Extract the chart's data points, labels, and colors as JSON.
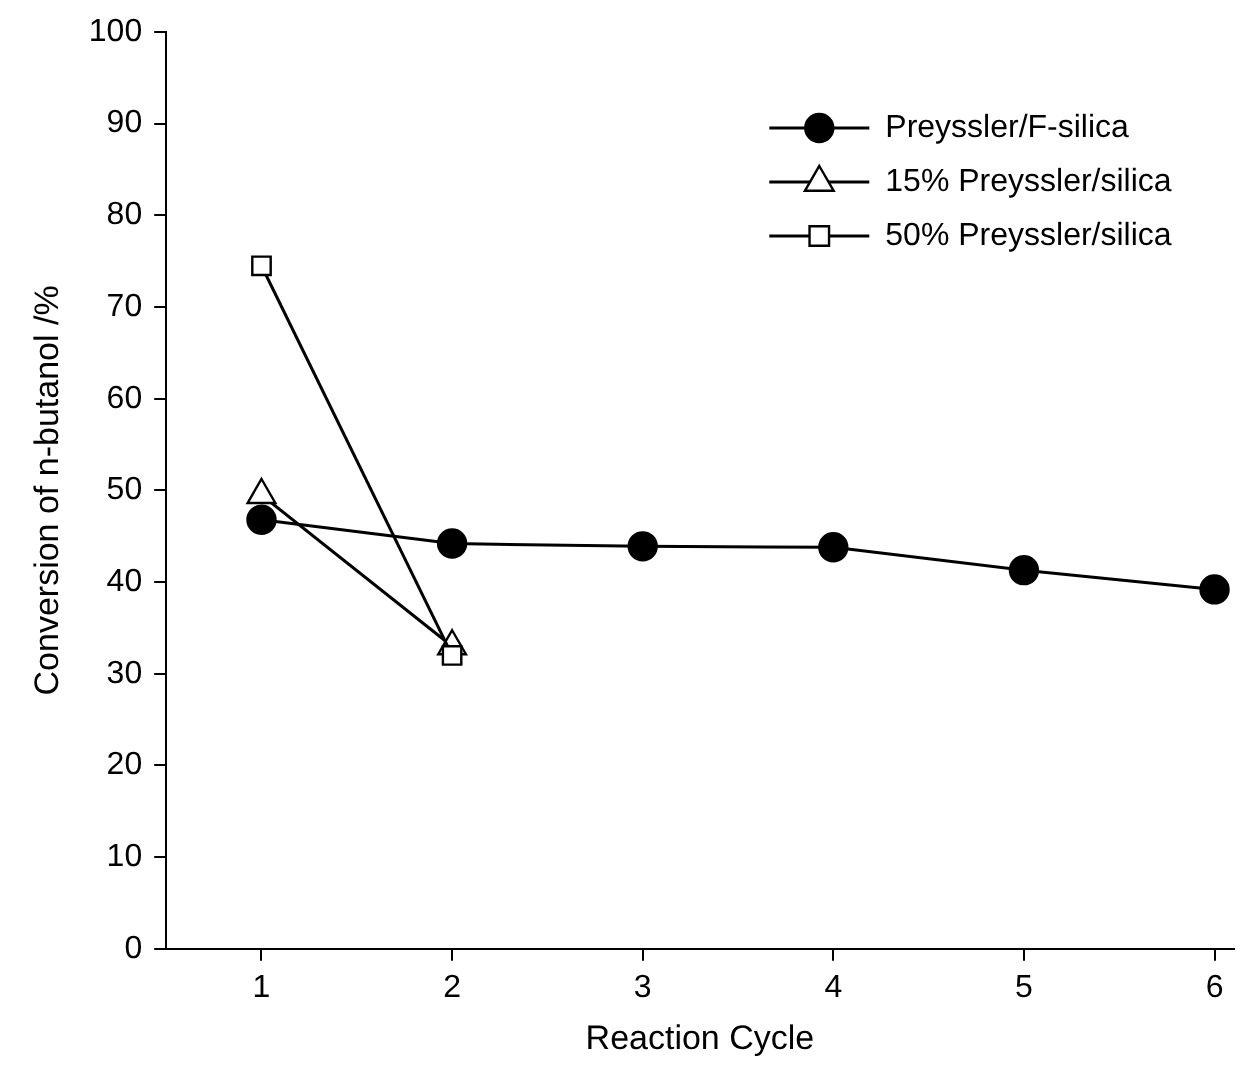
{
  "chart_data": {
    "type": "line",
    "xlabel": "Reaction Cycle",
    "ylabel": "Conversion of n-butanol /%",
    "x": [
      1,
      2,
      3,
      4,
      5,
      6
    ],
    "series": [
      {
        "name": "Preyssler/F-silica",
        "color": "#000000",
        "marker": "circle",
        "values": [
          46.8,
          44.2,
          43.9,
          43.8,
          41.3,
          39.2
        ]
      },
      {
        "name": "15% Preyssler/silica",
        "color": "#000000",
        "marker": "triangle",
        "values": [
          49.5,
          33,
          null,
          null,
          null,
          null
        ]
      },
      {
        "name": "50% Preyssler/silica",
        "color": "#000000",
        "marker": "square",
        "values": [
          74.5,
          32,
          null,
          null,
          null,
          null
        ]
      }
    ],
    "xlim": [
      0.5,
      6.1
    ],
    "xticks": [
      1,
      2,
      3,
      4,
      5,
      6
    ],
    "ylim": [
      0,
      100
    ],
    "yticks": [
      0,
      10,
      20,
      30,
      40,
      50,
      60,
      70,
      80,
      90,
      100
    ],
    "grid": false,
    "legend": "top right",
    "line_style": "solid"
  }
}
